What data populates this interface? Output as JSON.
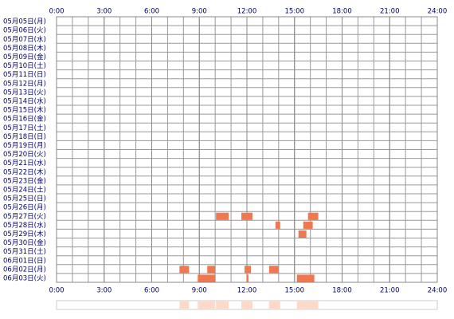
{
  "chart_data": {
    "type": "timeline",
    "categories": [
      "05月05日(月)",
      "05月06日(火)",
      "05月07日(水)",
      "05月08日(木)",
      "05月09日(金)",
      "05月10日(土)",
      "05月11日(日)",
      "05月12日(月)",
      "05月13日(火)",
      "05月14日(水)",
      "05月15日(木)",
      "05月16日(金)",
      "05月17日(土)",
      "05月18日(日)",
      "05月19日(月)",
      "05月20日(火)",
      "05月21日(水)",
      "05月22日(木)",
      "05月23日(金)",
      "05月24日(土)",
      "05月25日(日)",
      "05月26日(月)",
      "05月27日(火)",
      "05月28日(水)",
      "05月29日(木)",
      "05月30日(金)",
      "05月31日(土)",
      "06月01日(日)",
      "06月02日(月)",
      "06月03日(火)"
    ],
    "intervals": [
      [],
      [],
      [],
      [],
      [],
      [],
      [],
      [],
      [],
      [],
      [],
      [],
      [],
      [],
      [],
      [],
      [],
      [],
      [],
      [],
      [],
      [],
      [
        [
          10.05,
          10.85
        ],
        [
          11.65,
          12.35
        ],
        [
          15.85,
          16.5
        ]
      ],
      [
        [
          13.8,
          14.1
        ],
        [
          15.55,
          16.15
        ]
      ],
      [
        [
          15.25,
          15.75
        ]
      ],
      [],
      [],
      [],
      [
        [
          7.75,
          8.35
        ],
        [
          9.5,
          10.0
        ],
        [
          11.85,
          12.25
        ],
        [
          13.4,
          14.0
        ]
      ],
      [
        [
          8.9,
          10.0
        ],
        [
          12.0,
          12.1
        ],
        [
          15.15,
          16.25
        ]
      ]
    ],
    "color": "#f07850",
    "summary_color": "#fcd9c8",
    "xlim": [
      0,
      24
    ],
    "xticks": [
      {
        "value": 0,
        "label": "0:00"
      },
      {
        "value": 3,
        "label": "3:00"
      },
      {
        "value": 6,
        "label": "6:00"
      },
      {
        "value": 9,
        "label": "9:00"
      },
      {
        "value": 12,
        "label": "12:00"
      },
      {
        "value": 15,
        "label": "15:00"
      },
      {
        "value": 18,
        "label": "18:00"
      },
      {
        "value": 21,
        "label": "21:00"
      },
      {
        "value": 24,
        "label": "24:00"
      }
    ],
    "grid_step": 1,
    "grid": true
  }
}
